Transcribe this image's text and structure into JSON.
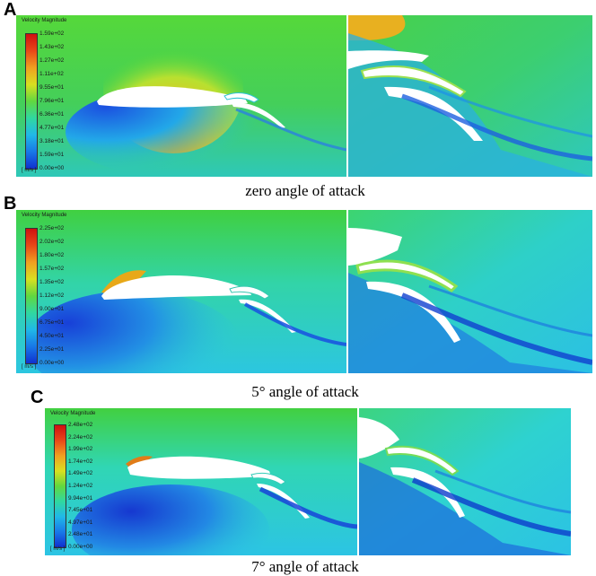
{
  "panels": [
    {
      "letter": "A",
      "caption": "zero angle of attack",
      "legend": {
        "title": "Velocity Magnitude",
        "unit": "[ m/s ]",
        "ticks": [
          "1.59e+02",
          "1.43e+02",
          "1.27e+02",
          "1.11e+02",
          "9.55e+01",
          "7.96e+01",
          "6.36e+01",
          "4.77e+01",
          "3.18e+01",
          "1.59e+01",
          "0.00e+00"
        ]
      }
    },
    {
      "letter": "B",
      "caption": "5° angle of attack",
      "legend": {
        "title": "Velocity Magnitude",
        "unit": "[ m/s ]",
        "ticks": [
          "2.25e+02",
          "2.02e+02",
          "1.80e+02",
          "1.57e+02",
          "1.35e+02",
          "1.12e+02",
          "9.00e+01",
          "6.75e+01",
          "4.50e+01",
          "2.25e+01",
          "0.00e+00"
        ]
      }
    },
    {
      "letter": "C",
      "caption": "7° angle of attack",
      "legend": {
        "title": "Velocity Magnitude",
        "unit": "[ m/s ]",
        "ticks": [
          "2.48e+02",
          "2.24e+02",
          "1.99e+02",
          "1.74e+02",
          "1.49e+02",
          "1.24e+02",
          "9.94e+01",
          "7.45e+01",
          "4.97e+01",
          "2.48e+01",
          "0.00e+00"
        ]
      }
    }
  ],
  "colors": {
    "freestream_a": "#3fcf3a",
    "freestream_b": "#2fd6cc",
    "freestream_c": "#2bd9d8",
    "high_speed": "#e8b21c",
    "peak": "#e24a10",
    "low_speed": "#1b4fe0",
    "stagnation": "#0a1fc8"
  }
}
